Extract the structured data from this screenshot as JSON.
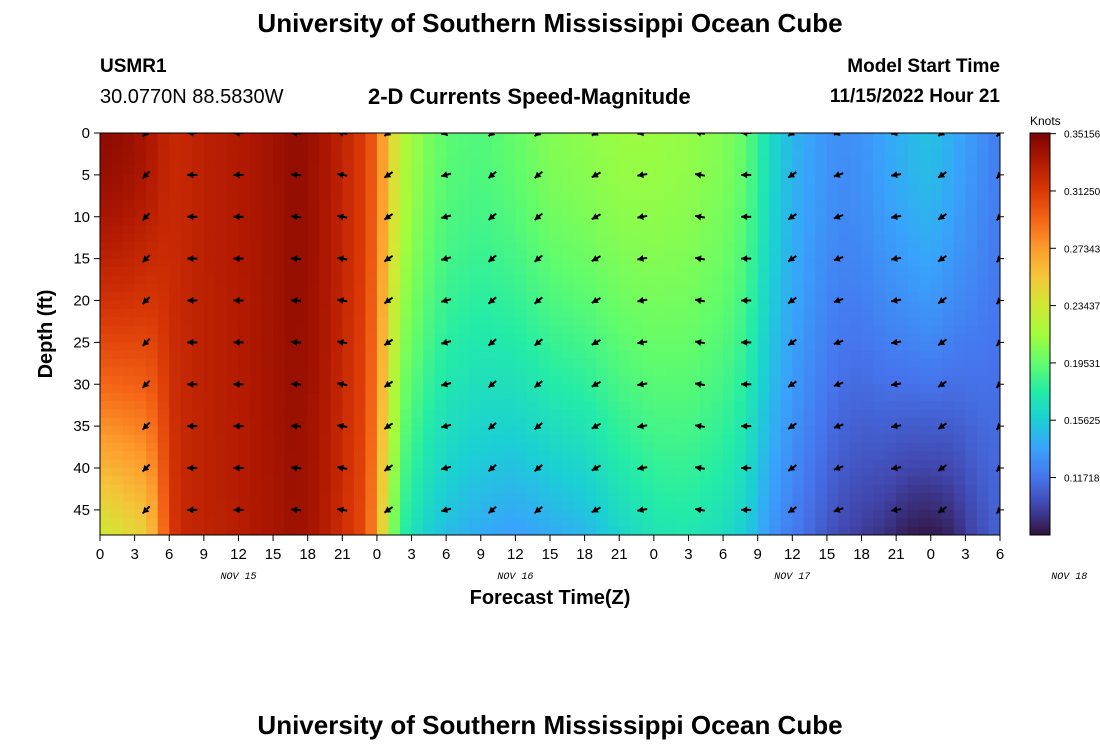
{
  "header": {
    "title": "University of Southern Mississippi Ocean Cube",
    "station_id": "USMR1",
    "coordinates": "30.0770N  88.5830W",
    "model_start_label": "Model Start Time",
    "model_start_value": "11/15/2022 Hour 21"
  },
  "footer": {
    "title": "University of Southern Mississippi Ocean Cube"
  },
  "chart_data": {
    "type": "heatmap",
    "title": "2-D Currents Speed-Magnitude",
    "xlabel": "Forecast Time(Z)",
    "ylabel": "Depth (ft)",
    "x_tick_labels": [
      "0",
      "3",
      "6",
      "9",
      "12",
      "15",
      "18",
      "21",
      "0",
      "3",
      "6",
      "9",
      "12",
      "15",
      "18",
      "21",
      "0",
      "3",
      "6",
      "9",
      "12",
      "15",
      "18",
      "21",
      "0",
      "3",
      "6"
    ],
    "date_labels": [
      {
        "label": "NOV 15",
        "at_hour": 12
      },
      {
        "label": "NOV 16",
        "at_hour": 36
      },
      {
        "label": "NOV 17",
        "at_hour": 60
      },
      {
        "label": "NOV 18",
        "at_hour": 84
      }
    ],
    "xlim": [
      0,
      78
    ],
    "y_ticks": [
      0,
      5,
      10,
      15,
      20,
      25,
      30,
      35,
      40,
      45
    ],
    "ylim": [
      0,
      48
    ],
    "colorbar": {
      "label": "Knots",
      "tick_labels": [
        "0.35156",
        "0.31250",
        "0.27343",
        "0.23437",
        "0.19531",
        "0.15625",
        "0.11718"
      ],
      "tick_values": [
        0.35156,
        0.3125,
        0.27343,
        0.23437,
        0.19531,
        0.15625,
        0.11718
      ],
      "range": [
        0.078,
        0.352
      ],
      "colors": [
        "#30123b",
        "#4145ab",
        "#4675ed",
        "#39a2fc",
        "#1bcfd4",
        "#24eca6",
        "#61fc6c",
        "#a4fc3b",
        "#d1e834",
        "#f3c63a",
        "#fe9b2d",
        "#f36315",
        "#d93806",
        "#b11901",
        "#7a0402"
      ]
    },
    "time_profile": {
      "hours": [
        0,
        2,
        4,
        5,
        6,
        7,
        9,
        12,
        15,
        17,
        19,
        21,
        22,
        23,
        24,
        25,
        26,
        28,
        30,
        33,
        36,
        39,
        42,
        45,
        48,
        51,
        54,
        56,
        58,
        60,
        62,
        64,
        66,
        68,
        70,
        72,
        74,
        76,
        78
      ],
      "surface": [
        0.345,
        0.342,
        0.336,
        0.33,
        0.323,
        0.323,
        0.328,
        0.332,
        0.338,
        0.344,
        0.338,
        0.326,
        0.318,
        0.31,
        0.29,
        0.255,
        0.225,
        0.205,
        0.193,
        0.19,
        0.196,
        0.205,
        0.208,
        0.212,
        0.212,
        0.21,
        0.205,
        0.195,
        0.165,
        0.145,
        0.135,
        0.128,
        0.13,
        0.138,
        0.145,
        0.15,
        0.14,
        0.13,
        0.12
      ],
      "bottom": [
        0.232,
        0.24,
        0.25,
        0.27,
        0.31,
        0.322,
        0.326,
        0.33,
        0.336,
        0.34,
        0.334,
        0.32,
        0.31,
        0.305,
        0.27,
        0.22,
        0.18,
        0.16,
        0.148,
        0.14,
        0.135,
        0.14,
        0.145,
        0.16,
        0.17,
        0.172,
        0.165,
        0.155,
        0.132,
        0.12,
        0.11,
        0.1,
        0.094,
        0.09,
        0.082,
        0.08,
        0.086,
        0.1,
        0.11
      ]
    },
    "vectors": {
      "hours": [
        4,
        8,
        12,
        17,
        21,
        25,
        30,
        34,
        38,
        43,
        47,
        52,
        56,
        60,
        64,
        69,
        73,
        78
      ],
      "depths": [
        0,
        5,
        10,
        15,
        20,
        25,
        30,
        35,
        40,
        45
      ],
      "direction_deg": [
        225,
        180,
        180,
        175,
        170,
        215,
        195,
        220,
        220,
        210,
        190,
        170,
        180,
        215,
        200,
        190,
        215,
        225
      ]
    }
  }
}
